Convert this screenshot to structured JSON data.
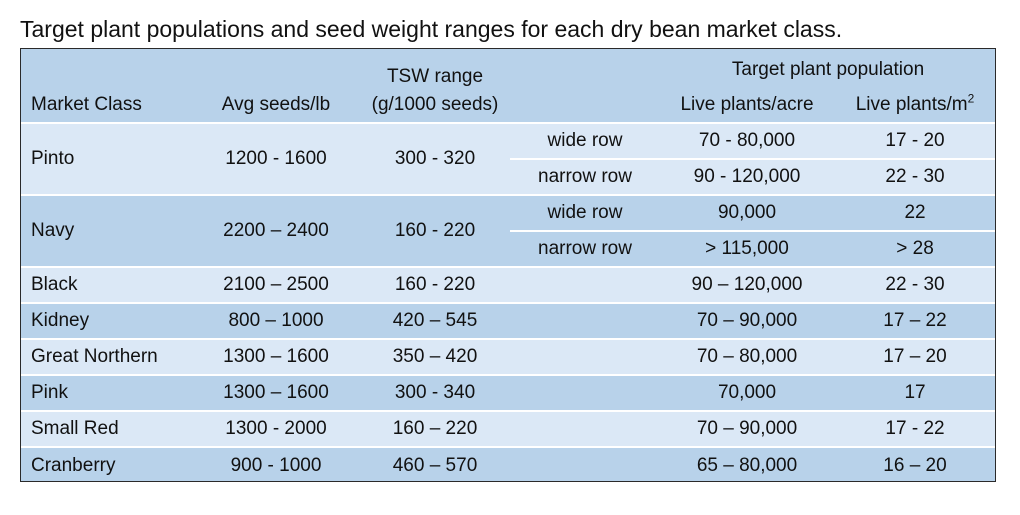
{
  "caption": "Target plant populations and seed weight ranges for each dry bean market class.",
  "headers": {
    "market_class": "Market Class",
    "avg_seeds": "Avg seeds/lb",
    "tsw_line1": "TSW range",
    "tsw_line2": "(g/1000 seeds)",
    "target_population": "Target plant population",
    "live_acre": "Live plants/acre",
    "live_m2_base": "Live plants/m",
    "live_m2_sup": "2"
  },
  "rows": {
    "pinto": {
      "name": "Pinto",
      "seeds": "1200 - 1600",
      "tsw": "300 - 320",
      "sub1": {
        "row": "wide row",
        "acre": "70 - 80,000",
        "m2": "17 - 20"
      },
      "sub2": {
        "row": "narrow row",
        "acre": "90 - 120,000",
        "m2": "22 - 30"
      }
    },
    "navy": {
      "name": "Navy",
      "seeds": "2200 – 2400",
      "tsw": "160 - 220",
      "sub1": {
        "row": "wide row",
        "acre": "90,000",
        "m2": "22"
      },
      "sub2": {
        "row": "narrow row",
        "acre": "> 115,000",
        "m2": "> 28"
      }
    },
    "black": {
      "name": "Black",
      "seeds": "2100 – 2500",
      "tsw": "160 - 220",
      "acre": "90 – 120,000",
      "m2": "22 - 30"
    },
    "kidney": {
      "name": "Kidney",
      "seeds": "800 – 1000",
      "tsw": "420 – 545",
      "acre": "70 – 90,000",
      "m2": "17 – 22"
    },
    "great_northern": {
      "name": "Great Northern",
      "seeds": "1300 – 1600",
      "tsw": "350 – 420",
      "acre": "70 – 80,000",
      "m2": "17 – 20"
    },
    "pink": {
      "name": "Pink",
      "seeds": "1300 – 1600",
      "tsw": "300 - 340",
      "acre": "70,000",
      "m2": "17"
    },
    "small_red": {
      "name": "Small Red",
      "seeds": "1300 - 2000",
      "tsw": "160 – 220",
      "acre": "70 – 90,000",
      "m2": "17 - 22"
    },
    "cranberry": {
      "name": "Cranberry",
      "seeds": "900 - 1000",
      "tsw": "460 – 570",
      "acre": "65 – 80,000",
      "m2": "16 – 20"
    }
  }
}
